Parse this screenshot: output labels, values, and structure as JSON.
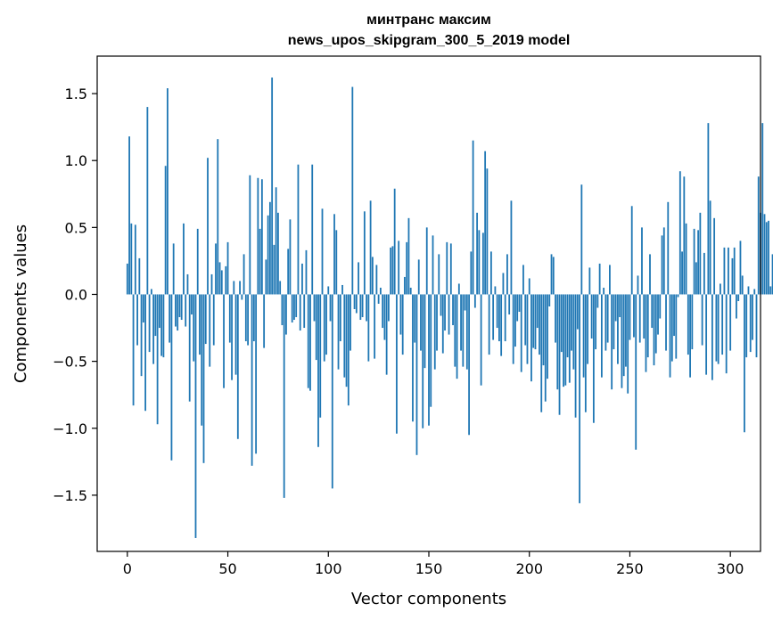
{
  "chart_data": {
    "type": "bar",
    "title": "минтранс максим",
    "subtitle": "news_upos_skipgram_300_5_2019 model",
    "xlabel": "Vector components",
    "ylabel": "Components values",
    "xlim": [
      -15,
      315
    ],
    "ylim": [
      -1.92,
      1.78
    ],
    "xticks": [
      0,
      50,
      100,
      150,
      200,
      250,
      300
    ],
    "yticks": [
      -1.5,
      -1.0,
      -0.5,
      0.0,
      0.5,
      1.0,
      1.5
    ],
    "xtick_labels": [
      "0",
      "50",
      "100",
      "150",
      "200",
      "250",
      "300"
    ],
    "ytick_labels": [
      "−1.5",
      "−1.0",
      "−0.5",
      "0.0",
      "0.5",
      "1.0",
      "1.5"
    ],
    "grid": false,
    "bar_color": "#1f77b4",
    "values": [
      0.23,
      1.18,
      0.53,
      -0.83,
      0.52,
      -0.38,
      0.27,
      -0.61,
      -0.21,
      -0.87,
      1.4,
      -0.43,
      0.04,
      -0.52,
      -0.31,
      -0.97,
      -0.25,
      -0.46,
      -0.47,
      0.96,
      1.54,
      -0.36,
      -1.24,
      0.38,
      -0.24,
      -0.27,
      -0.17,
      -0.19,
      0.53,
      -0.24,
      0.15,
      -0.8,
      -0.15,
      -0.5,
      -1.82,
      0.49,
      -0.45,
      -0.98,
      -1.26,
      -0.37,
      1.02,
      -0.54,
      0.15,
      -0.38,
      0.38,
      1.16,
      0.24,
      0.18,
      -0.7,
      0.21,
      0.39,
      -0.36,
      -0.64,
      0.1,
      -0.6,
      -1.08,
      0.1,
      -0.04,
      0.3,
      -0.35,
      -0.38,
      0.89,
      -1.28,
      -0.35,
      -1.19,
      0.87,
      0.49,
      0.86,
      -0.4,
      0.26,
      0.59,
      0.69,
      1.62,
      0.37,
      0.8,
      0.61,
      0.1,
      -0.23,
      -1.52,
      -0.3,
      0.34,
      0.56,
      -0.21,
      -0.19,
      -0.17,
      0.97,
      -0.27,
      0.23,
      -0.25,
      0.33,
      -0.7,
      -0.72,
      0.97,
      -0.2,
      -0.49,
      -1.14,
      -0.92,
      0.64,
      -0.5,
      -0.45,
      0.06,
      -0.2,
      -1.45,
      0.6,
      0.48,
      -0.56,
      -0.35,
      0.07,
      -0.62,
      -0.69,
      -0.83,
      -0.42,
      1.55,
      -0.11,
      -0.14,
      0.24,
      -0.19,
      -0.17,
      0.62,
      -0.2,
      -0.5,
      0.7,
      0.28,
      -0.48,
      0.22,
      -0.07,
      0.05,
      -0.25,
      -0.34,
      -0.6,
      -0.2,
      0.35,
      0.36,
      0.79,
      -1.04,
      0.4,
      -0.3,
      -0.45,
      0.13,
      0.39,
      0.57,
      0.05,
      -0.95,
      -0.36,
      -1.2,
      0.26,
      -0.42,
      -1.0,
      -0.55,
      0.5,
      -0.98,
      -0.84,
      0.44,
      -0.56,
      -0.42,
      0.3,
      -0.16,
      -0.44,
      -0.27,
      0.39,
      -0.3,
      0.38,
      -0.23,
      -0.54,
      -0.63,
      0.08,
      -0.42,
      -0.54,
      -0.12,
      -0.56,
      -1.05,
      0.32,
      1.15,
      -0.1,
      0.61,
      0.48,
      -0.68,
      0.46,
      1.07,
      0.94,
      -0.45,
      0.32,
      -0.34,
      0.06,
      -0.25,
      -0.35,
      -0.46,
      0.16,
      -0.35,
      0.3,
      -0.15,
      0.7,
      -0.52,
      -0.39,
      -0.2,
      -0.13,
      -0.58,
      0.22,
      -0.38,
      -0.52,
      0.12,
      -0.65,
      -0.4,
      -0.41,
      -0.25,
      -0.45,
      -0.88,
      -0.53,
      -0.8,
      -0.63,
      -0.09,
      0.3,
      0.28,
      -0.36,
      -0.71,
      -0.9,
      -0.43,
      -0.69,
      -0.68,
      -0.47,
      -0.66,
      -0.42,
      -0.56,
      -0.92,
      -0.26,
      -1.56,
      0.82,
      -0.62,
      -0.88,
      -0.52,
      0.2,
      -0.33,
      -0.96,
      -0.41,
      -0.1,
      0.23,
      -0.62,
      0.05,
      -0.42,
      -0.36,
      0.22,
      -0.71,
      -0.41,
      -0.2,
      -0.52,
      -0.17,
      -0.7,
      -0.61,
      -0.54,
      -0.74,
      -0.34,
      0.66,
      -0.32,
      -1.16,
      0.14,
      -0.36,
      0.5,
      -0.33,
      -0.58,
      -0.47,
      0.3,
      -0.25,
      -0.53,
      -0.44,
      -0.3,
      -0.18,
      0.44,
      0.5,
      -0.42,
      0.69,
      -0.62,
      -0.5,
      -0.31,
      -0.48,
      -0.02,
      0.92,
      0.32,
      0.88,
      0.53,
      -0.45,
      -0.62,
      -0.41,
      0.49,
      0.24,
      0.48,
      0.61,
      -0.38,
      0.31,
      -0.6,
      1.28,
      0.7,
      -0.64,
      0.57,
      -0.5,
      -0.52,
      0.08,
      -0.45,
      0.35,
      -0.59,
      0.35,
      -0.42,
      0.27,
      0.35,
      -0.18,
      -0.05,
      0.4,
      0.14,
      -1.03,
      -0.47,
      0.06,
      -0.43,
      -0.34,
      0.04,
      -0.47,
      0.88,
      0.61,
      1.28,
      0.6,
      0.54,
      0.55,
      0.06,
      0.3,
      -0.41
    ]
  }
}
